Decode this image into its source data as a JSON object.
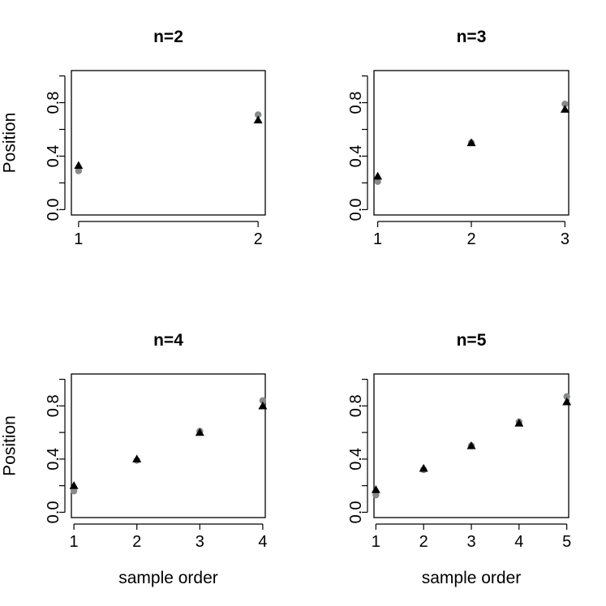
{
  "chart_data": [
    {
      "type": "scatter",
      "title": "n=2",
      "xlabel": "",
      "ylabel": "Position",
      "ylim": [
        0,
        1
      ],
      "x_ticks": [
        "1",
        "2"
      ],
      "y_ticks": [
        "0.0",
        "0.4",
        "0.8"
      ],
      "x": [
        1,
        2
      ],
      "series": [
        {
          "marker": "circle",
          "color": "#858c87",
          "values": [
            0.29,
            0.71
          ]
        },
        {
          "marker": "triangle",
          "color": "#000000",
          "values": [
            0.33,
            0.67
          ]
        }
      ]
    },
    {
      "type": "scatter",
      "title": "n=3",
      "xlabel": "",
      "ylabel": "",
      "ylim": [
        0,
        1
      ],
      "x_ticks": [
        "1",
        "2",
        "3"
      ],
      "y_ticks": [
        "0.0",
        "0.4",
        "0.8"
      ],
      "x": [
        1,
        2,
        3
      ],
      "series": [
        {
          "marker": "circle",
          "color": "#858c87",
          "values": [
            0.21,
            0.5,
            0.79
          ]
        },
        {
          "marker": "triangle",
          "color": "#000000",
          "values": [
            0.25,
            0.5,
            0.75
          ]
        }
      ]
    },
    {
      "type": "scatter",
      "title": "n=4",
      "xlabel": "sample order",
      "ylabel": "Position",
      "ylim": [
        0,
        1
      ],
      "x_ticks": [
        "1",
        "2",
        "3",
        "4"
      ],
      "y_ticks": [
        "0.0",
        "0.4",
        "0.8"
      ],
      "x": [
        1,
        2,
        3,
        4
      ],
      "series": [
        {
          "marker": "circle",
          "color": "#858c87",
          "values": [
            0.16,
            0.39,
            0.61,
            0.84
          ]
        },
        {
          "marker": "triangle",
          "color": "#000000",
          "values": [
            0.2,
            0.4,
            0.6,
            0.8
          ]
        }
      ]
    },
    {
      "type": "scatter",
      "title": "n=5",
      "xlabel": "sample order",
      "ylabel": "",
      "ylim": [
        0,
        1
      ],
      "x_ticks": [
        "1",
        "2",
        "3",
        "4",
        "5"
      ],
      "y_ticks": [
        "0.0",
        "0.4",
        "0.8"
      ],
      "x": [
        1,
        2,
        3,
        4,
        5
      ],
      "series": [
        {
          "marker": "circle",
          "color": "#858c87",
          "values": [
            0.13,
            0.32,
            0.5,
            0.68,
            0.87
          ]
        },
        {
          "marker": "triangle",
          "color": "#000000",
          "values": [
            0.17,
            0.33,
            0.5,
            0.67,
            0.83
          ]
        }
      ]
    }
  ]
}
